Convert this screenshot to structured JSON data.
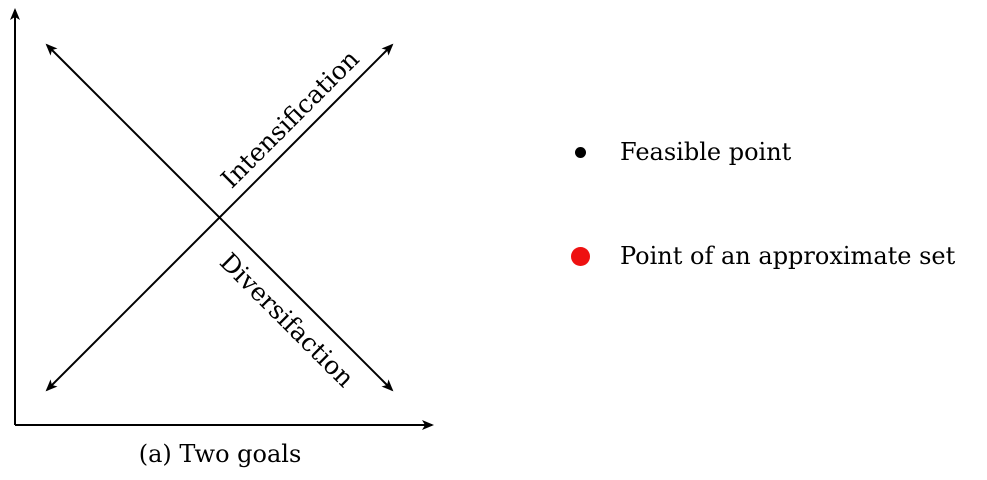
{
  "diagram": {
    "arrow_labels": {
      "intensification": "Intensification",
      "diversification": "Diversifaction"
    },
    "caption": "(a) Two goals",
    "line_color": "#000000"
  },
  "legend": {
    "items": [
      {
        "label": "Feasible point",
        "color": "#000000"
      },
      {
        "label": "Point of an approximate set",
        "color": "#ee1111"
      }
    ]
  }
}
